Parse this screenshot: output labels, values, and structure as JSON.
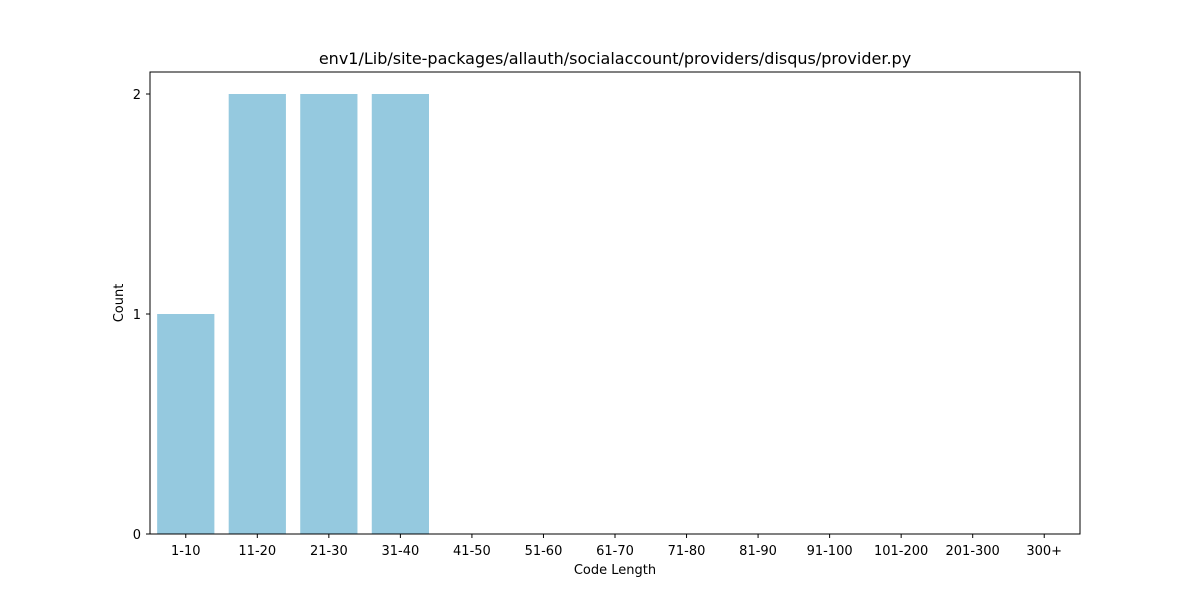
{
  "chart_data": {
    "type": "bar",
    "title": "env1/Lib/site-packages/allauth/socialaccount/providers/disqus/provider.py",
    "xlabel": "Code Length",
    "ylabel": "Count",
    "categories": [
      "1-10",
      "11-20",
      "21-30",
      "31-40",
      "41-50",
      "51-60",
      "61-70",
      "71-80",
      "81-90",
      "91-100",
      "101-200",
      "201-300",
      "300+"
    ],
    "values": [
      1,
      2,
      2,
      2,
      0,
      0,
      0,
      0,
      0,
      0,
      0,
      0,
      0
    ],
    "ylim": [
      0,
      2.1
    ],
    "yticks": [
      0,
      1,
      2
    ],
    "grid": false,
    "colors": {
      "bar": "#95c9df",
      "axis": "#000000"
    }
  }
}
